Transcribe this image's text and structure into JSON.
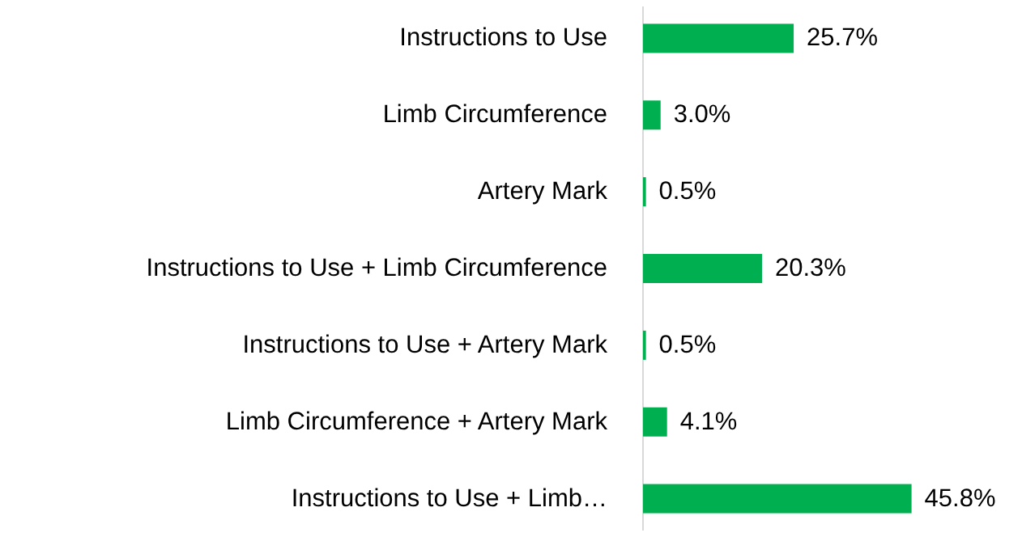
{
  "chart_data": {
    "type": "bar",
    "orientation": "horizontal",
    "categories": [
      "Instructions to Use",
      "Limb Circumference",
      "Artery Mark",
      "Instructions to Use + Limb Circumference",
      "Instructions to Use + Artery Mark",
      "Limb Circumference + Artery Mark",
      "Instructions to Use + Limb…"
    ],
    "values": [
      25.7,
      3.0,
      0.5,
      20.3,
      0.5,
      4.1,
      45.8
    ],
    "value_labels": [
      "25.7%",
      "3.0%",
      "0.5%",
      "20.3%",
      "0.5%",
      "4.1%",
      "45.8%"
    ],
    "color": "#00b050"
  }
}
